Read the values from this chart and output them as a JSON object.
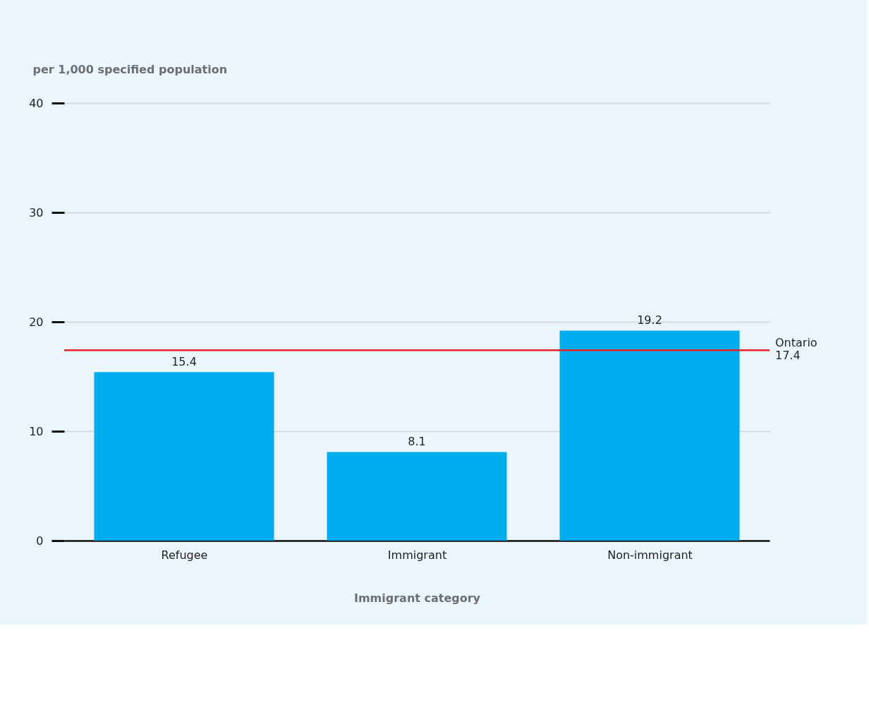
{
  "chart_data": {
    "type": "bar",
    "ylabel": "per 1,000 specified population",
    "xlabel": "Immigrant category",
    "categories": [
      "Refugee",
      "Immigrant",
      "Non-immigrant"
    ],
    "values": [
      15.4,
      8.1,
      19.2
    ],
    "color": "#00aeef",
    "ylim": [
      0,
      40
    ],
    "yticks": [
      0,
      10,
      20,
      30,
      40
    ],
    "grid": "y",
    "data_labels": true,
    "ref_lines": [
      {
        "axis": "y",
        "value": 17.4,
        "label": "Ontario 17.4",
        "color": "#e4202a",
        "line_style": "solid"
      }
    ]
  }
}
